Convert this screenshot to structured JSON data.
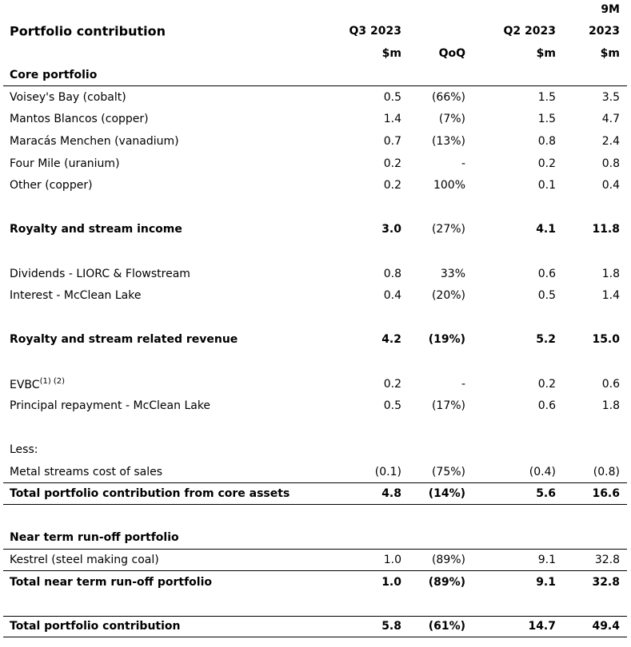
{
  "header": {
    "title": "Portfolio contribution",
    "q3_label": "Q3 2023",
    "q2_label": "Q2 2023",
    "m9_label_top": "9M",
    "m9_label": "2023",
    "q3_unit": "$m",
    "qoq_label": "QoQ",
    "q2_unit": "$m",
    "m9_unit": "$m"
  },
  "rows": [
    {
      "label": "Core portfolio",
      "bold": true,
      "line": "bottom"
    },
    {
      "label": "Voisey's Bay (cobalt)",
      "q3": "0.5",
      "qoq": "(66%)",
      "q2": "1.5",
      "m9": "3.5"
    },
    {
      "label": "Mantos Blancos (copper)",
      "q3": "1.4",
      "qoq": "(7%)",
      "q2": "1.5",
      "m9": "4.7"
    },
    {
      "label": "Maracás Menchen (vanadium)",
      "q3": "0.7",
      "qoq": "(13%)",
      "q2": "0.8",
      "m9": "2.4"
    },
    {
      "label": "Four Mile (uranium)",
      "q3": "0.2",
      "qoq": "-",
      "q2": "0.2",
      "m9": "0.8"
    },
    {
      "label": "Other (copper)",
      "q3": "0.2",
      "qoq": "100%",
      "q2": "0.1",
      "m9": "0.4"
    },
    {
      "spacer": true
    },
    {
      "label": "Royalty and stream income",
      "q3": "3.0",
      "qoq": "(27%)",
      "q2": "4.1",
      "m9": "11.8",
      "bold": true,
      "qoq_plain": true
    },
    {
      "spacer": true
    },
    {
      "label": "Dividends - LIORC & Flowstream",
      "q3": "0.8",
      "qoq": "33%",
      "q2": "0.6",
      "m9": "1.8"
    },
    {
      "label": "Interest - McClean Lake",
      "q3": "0.4",
      "qoq": "(20%)",
      "q2": "0.5",
      "m9": "1.4"
    },
    {
      "spacer": true
    },
    {
      "label": "Royalty and stream related revenue",
      "q3": "4.2",
      "qoq": "(19%)",
      "q2": "5.2",
      "m9": "15.0",
      "bold": true
    },
    {
      "spacer": true
    },
    {
      "label": "EVBC",
      "sup": "(1) (2)",
      "q3": "0.2",
      "qoq": "-",
      "q2": "0.2",
      "m9": "0.6"
    },
    {
      "label": "Principal repayment - McClean Lake",
      "q3": "0.5",
      "qoq": "(17%)",
      "q2": "0.6",
      "m9": "1.8"
    },
    {
      "spacer": true
    },
    {
      "label": "Less:"
    },
    {
      "label": "Metal streams cost of sales",
      "q3": "(0.1)",
      "qoq": "(75%)",
      "q2": "(0.4)",
      "m9": "(0.8)",
      "line": "bottom"
    },
    {
      "label": "Total portfolio contribution from core assets",
      "q3": "4.8",
      "qoq": "(14%)",
      "q2": "5.6",
      "m9": "16.6",
      "bold": true,
      "line": "bottom"
    },
    {
      "spacer": true
    },
    {
      "label": "Near term run-off portfolio",
      "bold": true,
      "line": "bottom"
    },
    {
      "label": "Kestrel (steel making coal)",
      "q3": "1.0",
      "qoq": "(89%)",
      "q2": "9.1",
      "m9": "32.8",
      "line": "bottom"
    },
    {
      "label": "Total near term run-off portfolio",
      "q3": "1.0",
      "qoq": "(89%)",
      "q2": "9.1",
      "m9": "32.8",
      "bold": true
    },
    {
      "spacer": true
    },
    {
      "label": "Total portfolio contribution",
      "q3": "5.8",
      "qoq": "(61%)",
      "q2": "14.7",
      "m9": "49.4",
      "bold": true,
      "line": "both"
    }
  ]
}
